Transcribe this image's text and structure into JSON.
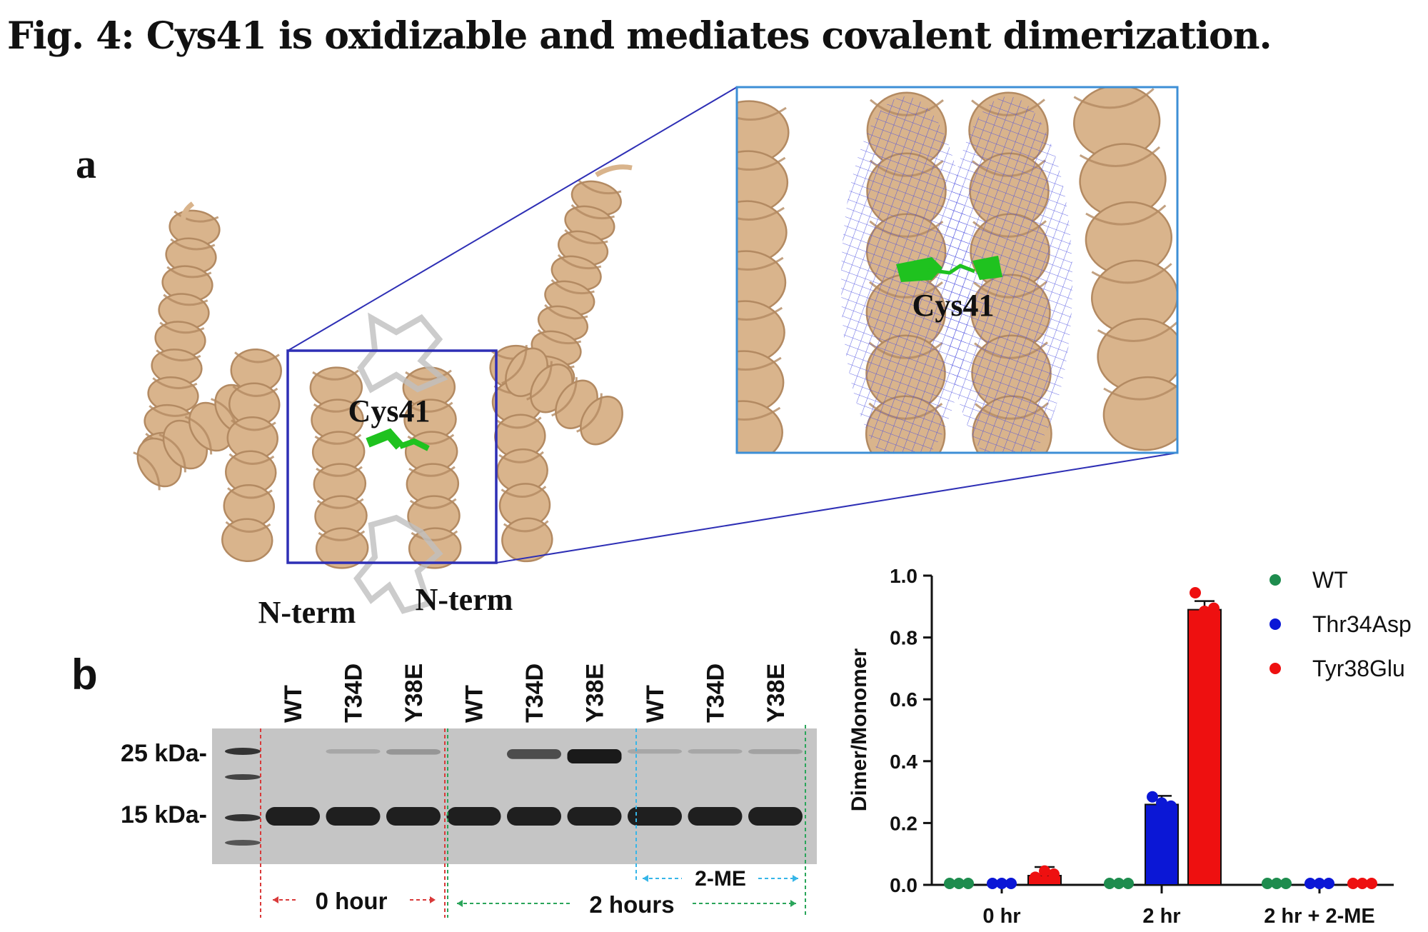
{
  "figure": {
    "title": "Fig. 4: Cys41 is oxidizable and mediates covalent dimerization.",
    "panel_a_label": "a",
    "panel_b_label": "b"
  },
  "structure": {
    "residue_label": "Cys41",
    "inset_residue_label": "Cys41",
    "nterm_left": "N-term",
    "nterm_right": "N-term",
    "colors": {
      "helix": "#d9b48c",
      "helix_shadow": "#b38a62",
      "cysteine": "#1fc21f",
      "mesh": "#4a4ee0",
      "box": "#2e2fb5",
      "inset_border": "#3d8fd6",
      "loop_ghost": "#bfbfbf"
    }
  },
  "gel": {
    "lanes": [
      "WT",
      "T34D",
      "Y38E",
      "WT",
      "T34D",
      "Y38E",
      "WT",
      "T34D",
      "Y38E"
    ],
    "markers": [
      "25 kDa-",
      "15 kDa-"
    ],
    "groups": [
      {
        "label": "0 hour",
        "color": "#d93a3a"
      },
      {
        "label": "2 hours",
        "color": "#2aa55a"
      },
      {
        "label": "2-ME",
        "color": "#36b6e8"
      }
    ],
    "dimer_band_intensity": [
      0,
      0.02,
      0.12,
      0,
      0.55,
      1.0,
      0.02,
      0.02,
      0.05
    ]
  },
  "chart_data": {
    "type": "bar",
    "categories": [
      "0 hr",
      "2 hr",
      "2 hr + 2-ME"
    ],
    "ylabel": "Dimer/Monomer",
    "xlabel": "",
    "ylim": [
      0,
      1.0
    ],
    "yticks": [
      "0.0",
      "0.2",
      "0.4",
      "0.6",
      "0.8",
      "1.0"
    ],
    "legend_position": "top-right",
    "series": [
      {
        "name": "WT",
        "color": "#1e8c4e",
        "values": [
          0.0,
          0.0,
          0.0
        ],
        "points": [
          [
            0.0,
            0.0,
            0.0
          ],
          [
            0.0,
            0.0,
            0.0
          ],
          [
            0.0,
            0.0,
            0.0
          ]
        ]
      },
      {
        "name": "Thr34Asp",
        "color": "#0b17d6",
        "values": [
          0.0,
          0.26,
          0.0
        ],
        "points": [
          [
            0.0,
            0.0,
            0.0
          ],
          [
            0.28,
            0.26,
            0.25
          ],
          [
            0.0,
            0.0,
            0.0
          ]
        ]
      },
      {
        "name": "Tyr38Glu",
        "color": "#ee1010",
        "values": [
          0.03,
          0.89,
          0.0
        ],
        "points": [
          [
            0.02,
            0.04,
            0.03
          ],
          [
            0.94,
            0.88,
            0.89
          ],
          [
            0.0,
            0.0,
            0.0
          ]
        ]
      }
    ]
  }
}
